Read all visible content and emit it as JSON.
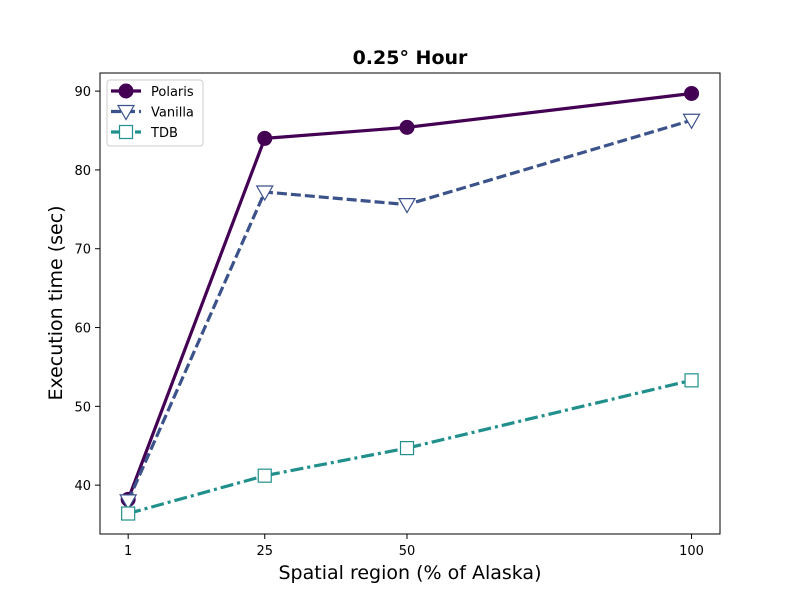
{
  "chart_data": {
    "type": "line",
    "title": "0.25° Hour",
    "xlabel": "Spatial region (% of Alaska)",
    "ylabel": "Execution time (sec)",
    "x": [
      1,
      25,
      50,
      100
    ],
    "xticks": [
      "1",
      "25",
      "50",
      "100"
    ],
    "xlim": [
      -3.95,
      105
    ],
    "yticks": [
      "40",
      "50",
      "60",
      "70",
      "80",
      "90"
    ],
    "ylim": [
      33.8,
      92.3
    ],
    "grid": false,
    "legend_position": "top-left",
    "series": [
      {
        "name": "Polaris",
        "values": [
          38.2,
          84.0,
          85.4,
          89.7
        ],
        "color": "#440154",
        "marker": "circle",
        "line": "solid"
      },
      {
        "name": "Vanilla",
        "values": [
          38.0,
          77.2,
          75.6,
          86.3
        ],
        "color": "#3b528b",
        "marker": "triangle-down",
        "line": "dashed"
      },
      {
        "name": "TDB",
        "values": [
          36.4,
          41.2,
          44.7,
          53.3
        ],
        "color": "#21908d",
        "marker": "square",
        "line": "dashdot"
      }
    ]
  }
}
